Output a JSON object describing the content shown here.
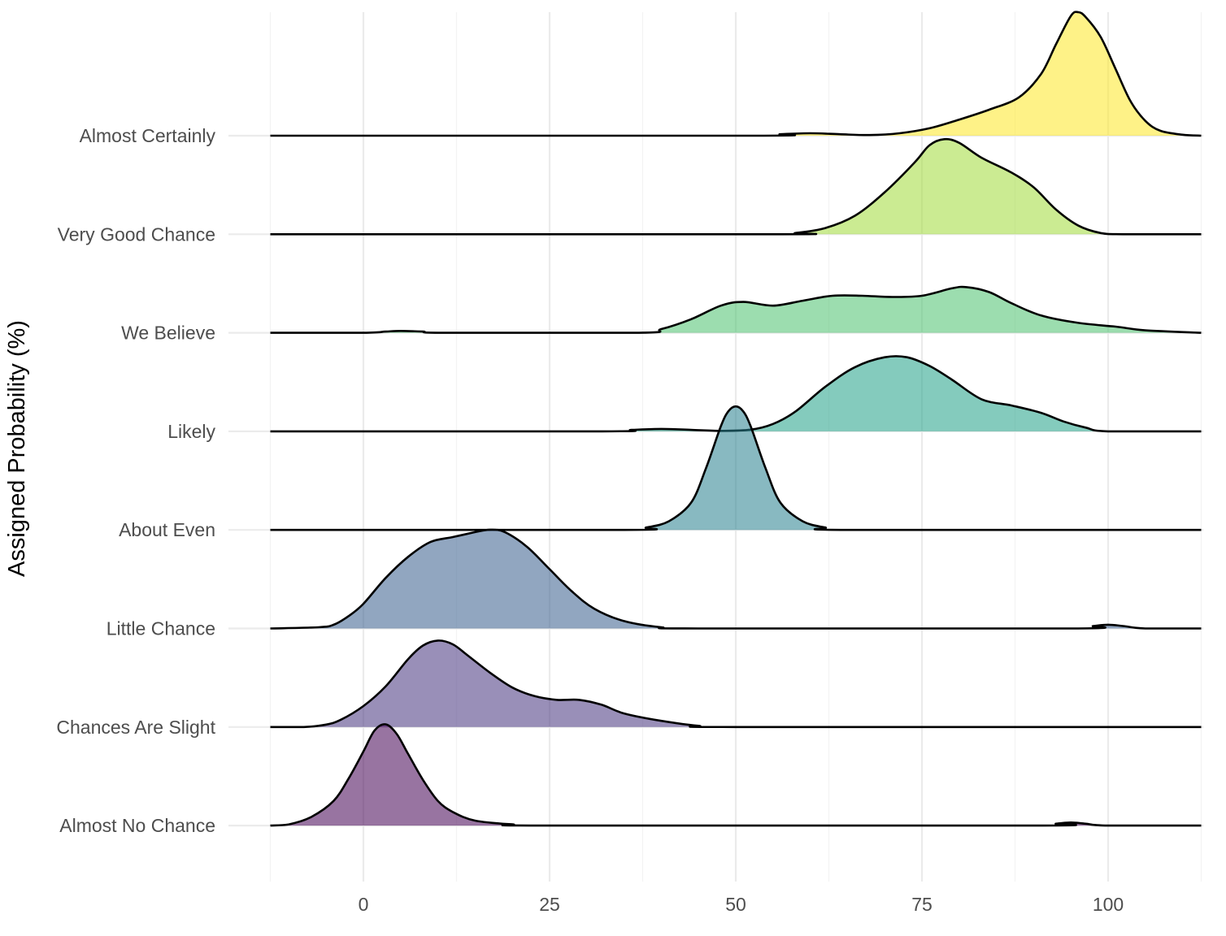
{
  "chart_data": {
    "type": "ridgeline",
    "title": "",
    "xlabel": "",
    "ylabel": "Assigned Probability (%)",
    "xlim": [
      -12.5,
      112.5
    ],
    "x_ticks": [
      0,
      25,
      50,
      75,
      100
    ],
    "grid": true,
    "legend": "none",
    "categories": [
      "Almost No Chance",
      "Chances Are Slight",
      "Little Chance",
      "About Even",
      "Likely",
      "We Believe",
      "Very Good Chance",
      "Almost Certainly"
    ],
    "series": [
      {
        "category": "Almost No Chance",
        "color": "#440154",
        "points": [
          [
            -12.5,
            0
          ],
          [
            -10,
            0.01
          ],
          [
            -7,
            0.07
          ],
          [
            -4,
            0.2
          ],
          [
            -2,
            0.38
          ],
          [
            0,
            0.6
          ],
          [
            1.5,
            0.77
          ],
          [
            3,
            0.82
          ],
          [
            4.5,
            0.74
          ],
          [
            6,
            0.58
          ],
          [
            8,
            0.37
          ],
          [
            10,
            0.2
          ],
          [
            12,
            0.11
          ],
          [
            15,
            0.04
          ],
          [
            20,
            0.01
          ],
          [
            25,
            0
          ],
          [
            90,
            0
          ],
          [
            93,
            0.015
          ],
          [
            95,
            0.025
          ],
          [
            97,
            0.015
          ],
          [
            100,
            0
          ],
          [
            112.5,
            0
          ]
        ]
      },
      {
        "category": "Chances Are Slight",
        "color": "#46337e",
        "points": [
          [
            -12.5,
            0
          ],
          [
            -8,
            0
          ],
          [
            -5,
            0.02
          ],
          [
            -3,
            0.06
          ],
          [
            0,
            0.17
          ],
          [
            3,
            0.33
          ],
          [
            6,
            0.55
          ],
          [
            8,
            0.66
          ],
          [
            10,
            0.7
          ],
          [
            12,
            0.67
          ],
          [
            14,
            0.58
          ],
          [
            17,
            0.44
          ],
          [
            20,
            0.32
          ],
          [
            23,
            0.25
          ],
          [
            26,
            0.22
          ],
          [
            29,
            0.22
          ],
          [
            32,
            0.18
          ],
          [
            35,
            0.11
          ],
          [
            40,
            0.05
          ],
          [
            45,
            0.01
          ],
          [
            50,
            0
          ],
          [
            112.5,
            0
          ]
        ]
      },
      {
        "category": "Little Chance",
        "color": "#365c8d",
        "points": [
          [
            -12.5,
            0
          ],
          [
            -6,
            0.01
          ],
          [
            -4,
            0.03
          ],
          [
            -2,
            0.1
          ],
          [
            0,
            0.2
          ],
          [
            3,
            0.41
          ],
          [
            6,
            0.58
          ],
          [
            9,
            0.7
          ],
          [
            12,
            0.74
          ],
          [
            15,
            0.78
          ],
          [
            17,
            0.8
          ],
          [
            19,
            0.78
          ],
          [
            22,
            0.66
          ],
          [
            25,
            0.48
          ],
          [
            28,
            0.3
          ],
          [
            31,
            0.16
          ],
          [
            35,
            0.06
          ],
          [
            40,
            0.01
          ],
          [
            45,
            0
          ],
          [
            95,
            0
          ],
          [
            98,
            0.02
          ],
          [
            100,
            0.03
          ],
          [
            102,
            0.02
          ],
          [
            105,
            0
          ],
          [
            112.5,
            0
          ]
        ]
      },
      {
        "category": "About Even",
        "color": "#277f8e",
        "points": [
          [
            -12.5,
            0
          ],
          [
            35,
            0
          ],
          [
            38,
            0.02
          ],
          [
            41,
            0.07
          ],
          [
            44,
            0.22
          ],
          [
            46,
            0.5
          ],
          [
            48,
            0.84
          ],
          [
            49,
            0.96
          ],
          [
            50,
            1.0
          ],
          [
            51,
            0.96
          ],
          [
            52,
            0.84
          ],
          [
            54,
            0.5
          ],
          [
            56,
            0.22
          ],
          [
            59,
            0.07
          ],
          [
            62,
            0.02
          ],
          [
            65,
            0
          ],
          [
            112.5,
            0
          ]
        ]
      },
      {
        "category": "Likely",
        "color": "#1fa187",
        "points": [
          [
            -12.5,
            0
          ],
          [
            32,
            0
          ],
          [
            36,
            0.012
          ],
          [
            40,
            0.02
          ],
          [
            44,
            0.012
          ],
          [
            48,
            0.004
          ],
          [
            52,
            0.014
          ],
          [
            55,
            0.06
          ],
          [
            58,
            0.16
          ],
          [
            62,
            0.36
          ],
          [
            66,
            0.52
          ],
          [
            70,
            0.6
          ],
          [
            73,
            0.6
          ],
          [
            76,
            0.53
          ],
          [
            79,
            0.42
          ],
          [
            83,
            0.26
          ],
          [
            87,
            0.21
          ],
          [
            91,
            0.15
          ],
          [
            94,
            0.08
          ],
          [
            97,
            0.03
          ],
          [
            100,
            0
          ],
          [
            112.5,
            0
          ]
        ]
      },
      {
        "category": "We Believe",
        "color": "#4ac16d",
        "points": [
          [
            -12.5,
            0
          ],
          [
            0,
            0
          ],
          [
            3,
            0.01
          ],
          [
            5,
            0.015
          ],
          [
            8,
            0.01
          ],
          [
            11,
            0
          ],
          [
            37,
            0
          ],
          [
            40,
            0.03
          ],
          [
            44,
            0.11
          ],
          [
            48,
            0.22
          ],
          [
            51,
            0.25
          ],
          [
            55,
            0.22
          ],
          [
            59,
            0.26
          ],
          [
            63,
            0.3
          ],
          [
            67,
            0.3
          ],
          [
            71,
            0.29
          ],
          [
            75,
            0.3
          ],
          [
            79,
            0.36
          ],
          [
            81,
            0.37
          ],
          [
            84,
            0.33
          ],
          [
            87,
            0.24
          ],
          [
            91,
            0.14
          ],
          [
            96,
            0.08
          ],
          [
            101,
            0.05
          ],
          [
            105,
            0.02
          ],
          [
            112.5,
            0
          ]
        ]
      },
      {
        "category": "Very Good Chance",
        "color": "#a0da39",
        "points": [
          [
            -12.5,
            0
          ],
          [
            55,
            0
          ],
          [
            58,
            0.01
          ],
          [
            62,
            0.05
          ],
          [
            66,
            0.15
          ],
          [
            70,
            0.34
          ],
          [
            74,
            0.58
          ],
          [
            76,
            0.72
          ],
          [
            78,
            0.77
          ],
          [
            80,
            0.74
          ],
          [
            83,
            0.62
          ],
          [
            87,
            0.5
          ],
          [
            90,
            0.38
          ],
          [
            93,
            0.2
          ],
          [
            96,
            0.07
          ],
          [
            99,
            0.01
          ],
          [
            102,
            0
          ],
          [
            112.5,
            0
          ]
        ]
      },
      {
        "category": "Almost Certainly",
        "color": "#fde725",
        "points": [
          [
            -12.5,
            0
          ],
          [
            52,
            0
          ],
          [
            56,
            0.012
          ],
          [
            60,
            0.02
          ],
          [
            64,
            0.012
          ],
          [
            68,
            0.005
          ],
          [
            72,
            0.02
          ],
          [
            76,
            0.06
          ],
          [
            80,
            0.13
          ],
          [
            84,
            0.21
          ],
          [
            88,
            0.31
          ],
          [
            91,
            0.5
          ],
          [
            93,
            0.74
          ],
          [
            95,
            0.97
          ],
          [
            96,
            1.0
          ],
          [
            97,
            0.96
          ],
          [
            99,
            0.8
          ],
          [
            101,
            0.54
          ],
          [
            103,
            0.28
          ],
          [
            105,
            0.12
          ],
          [
            107,
            0.04
          ],
          [
            110,
            0.008
          ],
          [
            112.5,
            0
          ]
        ]
      }
    ]
  }
}
